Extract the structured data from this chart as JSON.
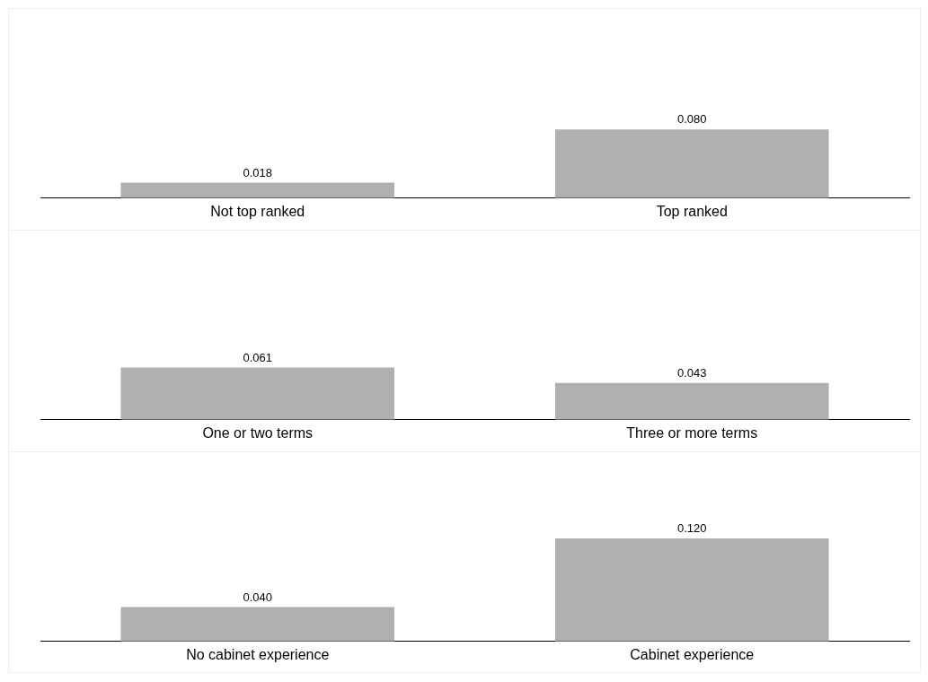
{
  "chart_data": [
    {
      "type": "bar",
      "categories": [
        "Not top ranked",
        "Top ranked"
      ],
      "values": [
        0.018,
        0.08
      ],
      "value_labels": [
        "0.018",
        "0.080"
      ],
      "color": "#b0b0b0"
    },
    {
      "type": "bar",
      "categories": [
        "One or two terms",
        "Three or more terms"
      ],
      "values": [
        0.061,
        0.043
      ],
      "value_labels": [
        "0.061",
        "0.043"
      ],
      "color": "#b0b0b0"
    },
    {
      "type": "bar",
      "categories": [
        "No cabinet experience",
        "Cabinet experience"
      ],
      "values": [
        0.04,
        0.12
      ],
      "value_labels": [
        "0.040",
        "0.120"
      ],
      "color": "#b0b0b0"
    }
  ]
}
